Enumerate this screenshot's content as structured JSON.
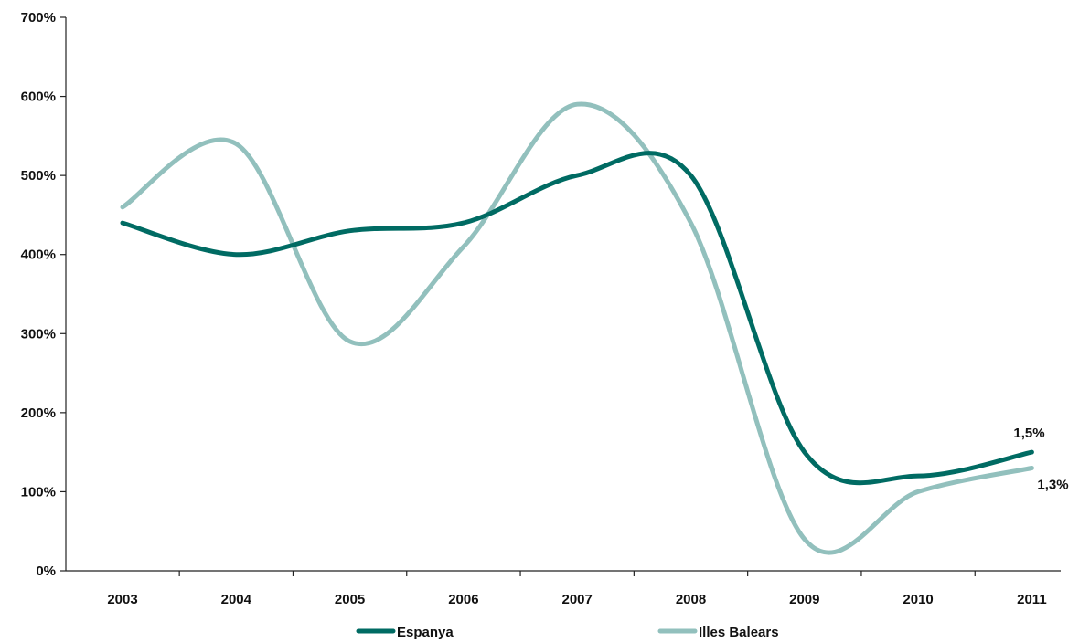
{
  "chart_data": {
    "type": "line",
    "categories": [
      "2003",
      "2004",
      "2005",
      "2006",
      "2007",
      "2008",
      "2009",
      "2010",
      "2011"
    ],
    "ylim": [
      0,
      700
    ],
    "yticks": [
      0,
      100,
      200,
      300,
      400,
      500,
      600,
      700
    ],
    "ytick_labels": [
      "0%",
      "100%",
      "200%",
      "300%",
      "400%",
      "500%",
      "600%",
      "700%"
    ],
    "grid": false,
    "legend_position": "bottom",
    "series": [
      {
        "name": "Espanya",
        "color": "#006b63",
        "values": [
          440,
          400,
          430,
          440,
          500,
          500,
          150,
          120,
          150
        ],
        "end_label": "1,5%"
      },
      {
        "name": "Illes Balears",
        "color": "#92c0bd",
        "values": [
          460,
          540,
          290,
          410,
          590,
          440,
          40,
          100,
          130
        ],
        "end_label": "1,3%"
      }
    ]
  }
}
